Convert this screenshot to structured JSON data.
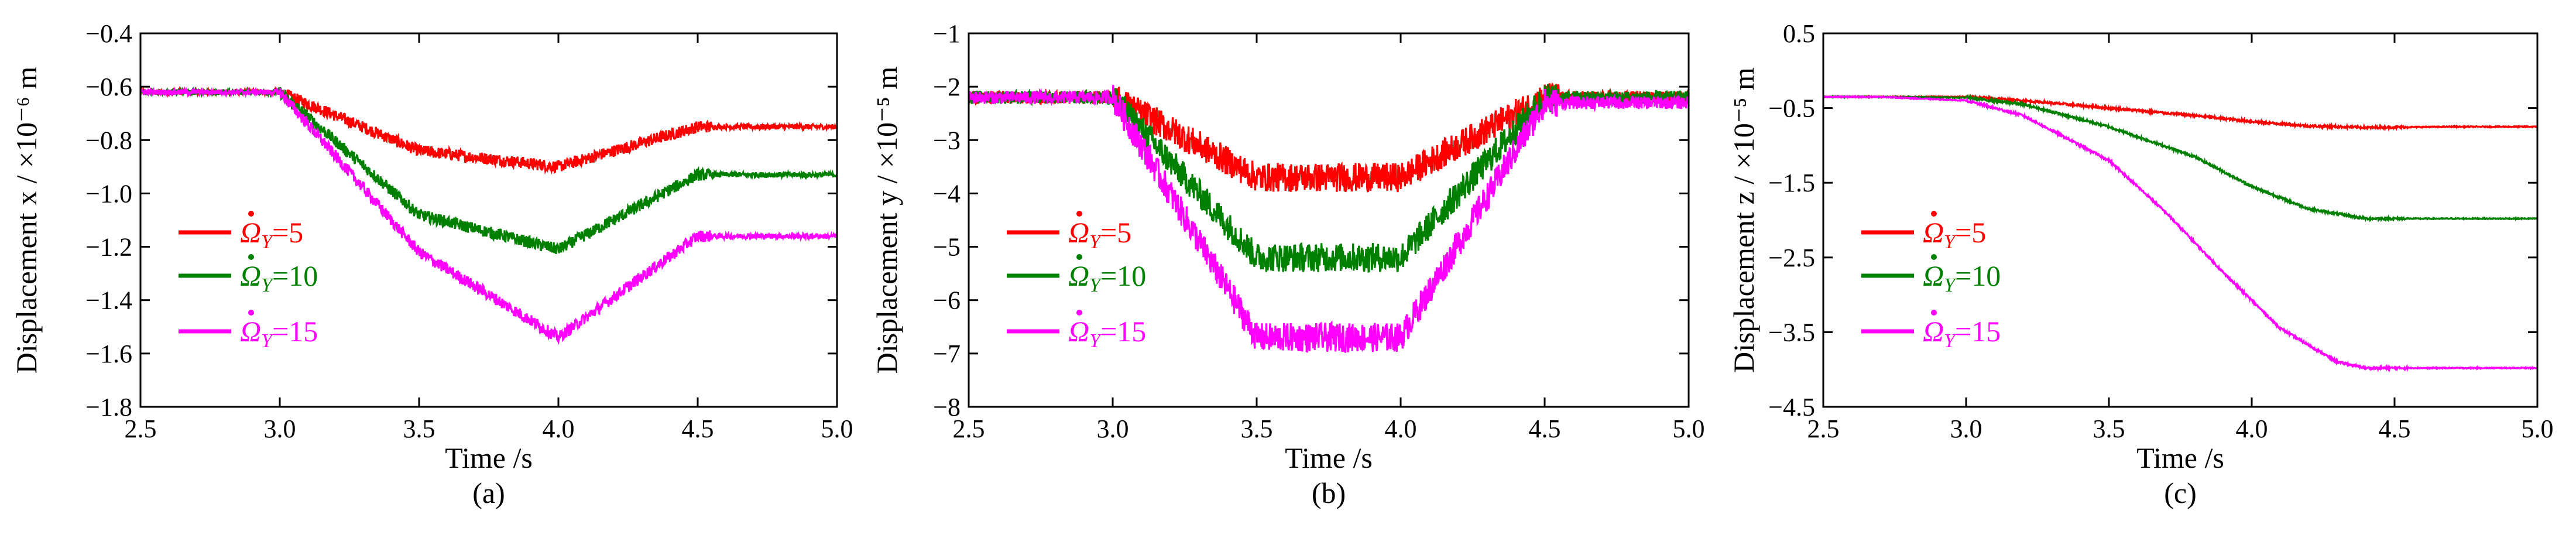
{
  "chart_data": [
    {
      "type": "line",
      "caption": "(a)",
      "xlabel": "Time /s",
      "ylabel": "Displacement x / ×10⁻⁶ m",
      "xlim": [
        2.5,
        5.0
      ],
      "ylim": [
        -1.8,
        -0.4
      ],
      "xticks": [
        "2.5",
        "3.0",
        "3.5",
        "4.0",
        "4.5",
        "5.0"
      ],
      "yticks": [
        "-0.4",
        "-0.6",
        "-0.8",
        "-1.0",
        "-1.2",
        "-1.4",
        "-1.6",
        "-1.8"
      ],
      "noise": 0.018,
      "series": [
        {
          "name": "Ω̇Y=5",
          "label": "5",
          "color": "#ff0000",
          "x": [
            2.5,
            3.0,
            3.5,
            4.0,
            4.5,
            5.0
          ],
          "values": [
            -0.62,
            -0.62,
            -0.84,
            -0.9,
            -0.75,
            -0.75
          ]
        },
        {
          "name": "Ω̇Y=10",
          "label": "10",
          "color": "#008000",
          "x": [
            2.5,
            3.0,
            3.5,
            4.0,
            4.5,
            5.0
          ],
          "values": [
            -0.62,
            -0.62,
            -1.08,
            -1.21,
            -0.93,
            -0.93
          ]
        },
        {
          "name": "Ω̇Y=15",
          "label": "15",
          "color": "#ff00ff",
          "x": [
            2.5,
            3.0,
            3.5,
            4.0,
            4.5,
            5.0
          ],
          "values": [
            -0.62,
            -0.62,
            -1.22,
            -1.54,
            -1.16,
            -1.16
          ]
        }
      ]
    },
    {
      "type": "line",
      "caption": "(b)",
      "xlabel": "Time /s",
      "ylabel": "Displacement y / ×10⁻⁵ m",
      "xlim": [
        2.5,
        5.0
      ],
      "ylim": [
        -8,
        -1
      ],
      "xticks": [
        "2.5",
        "3.0",
        "3.5",
        "4.0",
        "4.5",
        "5.0"
      ],
      "yticks": [
        "-1",
        "-2",
        "-3",
        "-4",
        "-5",
        "-6",
        "-7",
        "-8"
      ],
      "noise": 0.22,
      "series": [
        {
          "name": "Ω̇Y=5",
          "label": "5",
          "color": "#ff0000",
          "x": [
            2.5,
            3.0,
            3.5,
            4.0,
            4.5,
            5.0
          ],
          "values": [
            -2.2,
            -2.2,
            -3.7,
            -3.7,
            -2.2,
            -2.2
          ]
        },
        {
          "name": "Ω̇Y=10",
          "label": "10",
          "color": "#008000",
          "x": [
            2.5,
            3.0,
            3.5,
            4.0,
            4.5,
            5.0
          ],
          "values": [
            -2.2,
            -2.2,
            -5.2,
            -5.2,
            -2.2,
            -2.2
          ]
        },
        {
          "name": "Ω̇Y=15",
          "label": "15",
          "color": "#ff00ff",
          "x": [
            2.5,
            3.0,
            3.5,
            4.0,
            4.5,
            5.0
          ],
          "values": [
            -2.2,
            -2.2,
            -6.7,
            -6.7,
            -2.3,
            -2.3
          ]
        }
      ]
    },
    {
      "type": "line",
      "caption": "(c)",
      "xlabel": "Time /s",
      "ylabel": "Displacement z / ×10⁻⁵ m",
      "xlim": [
        2.5,
        5.0
      ],
      "ylim": [
        -4.5,
        0.5
      ],
      "xticks": [
        "2.5",
        "3.0",
        "3.5",
        "4.0",
        "4.5",
        "5.0"
      ],
      "yticks": [
        "0.5",
        "-0.5",
        "-1.5",
        "-2.5",
        "-3.5",
        "-4.5"
      ],
      "noise": 0.012,
      "series": [
        {
          "name": "Ω̇Y=5",
          "label": "5",
          "color": "#ff0000",
          "x": [
            2.5,
            2.7,
            3.0,
            3.2,
            3.5,
            3.8,
            4.0,
            4.2,
            4.4,
            4.7,
            5.0
          ],
          "values": [
            -0.35,
            -0.35,
            -0.35,
            -0.4,
            -0.5,
            -0.6,
            -0.68,
            -0.74,
            -0.76,
            -0.75,
            -0.75
          ]
        },
        {
          "name": "Ω̇Y=10",
          "label": "10",
          "color": "#008000",
          "x": [
            2.5,
            2.7,
            3.0,
            3.2,
            3.5,
            3.8,
            4.0,
            4.2,
            4.4,
            4.7,
            5.0
          ],
          "values": [
            -0.35,
            -0.35,
            -0.36,
            -0.45,
            -0.75,
            -1.15,
            -1.55,
            -1.85,
            -1.98,
            -1.98,
            -1.98
          ]
        },
        {
          "name": "Ω̇Y=15",
          "label": "15",
          "color": "#ff00ff",
          "x": [
            2.5,
            2.7,
            3.0,
            3.2,
            3.5,
            3.7,
            3.9,
            4.1,
            4.3,
            4.4,
            4.7,
            5.0
          ],
          "values": [
            -0.35,
            -0.35,
            -0.4,
            -0.6,
            -1.2,
            -1.9,
            -2.7,
            -3.45,
            -3.9,
            -3.98,
            -3.98,
            -3.98
          ]
        }
      ]
    }
  ]
}
